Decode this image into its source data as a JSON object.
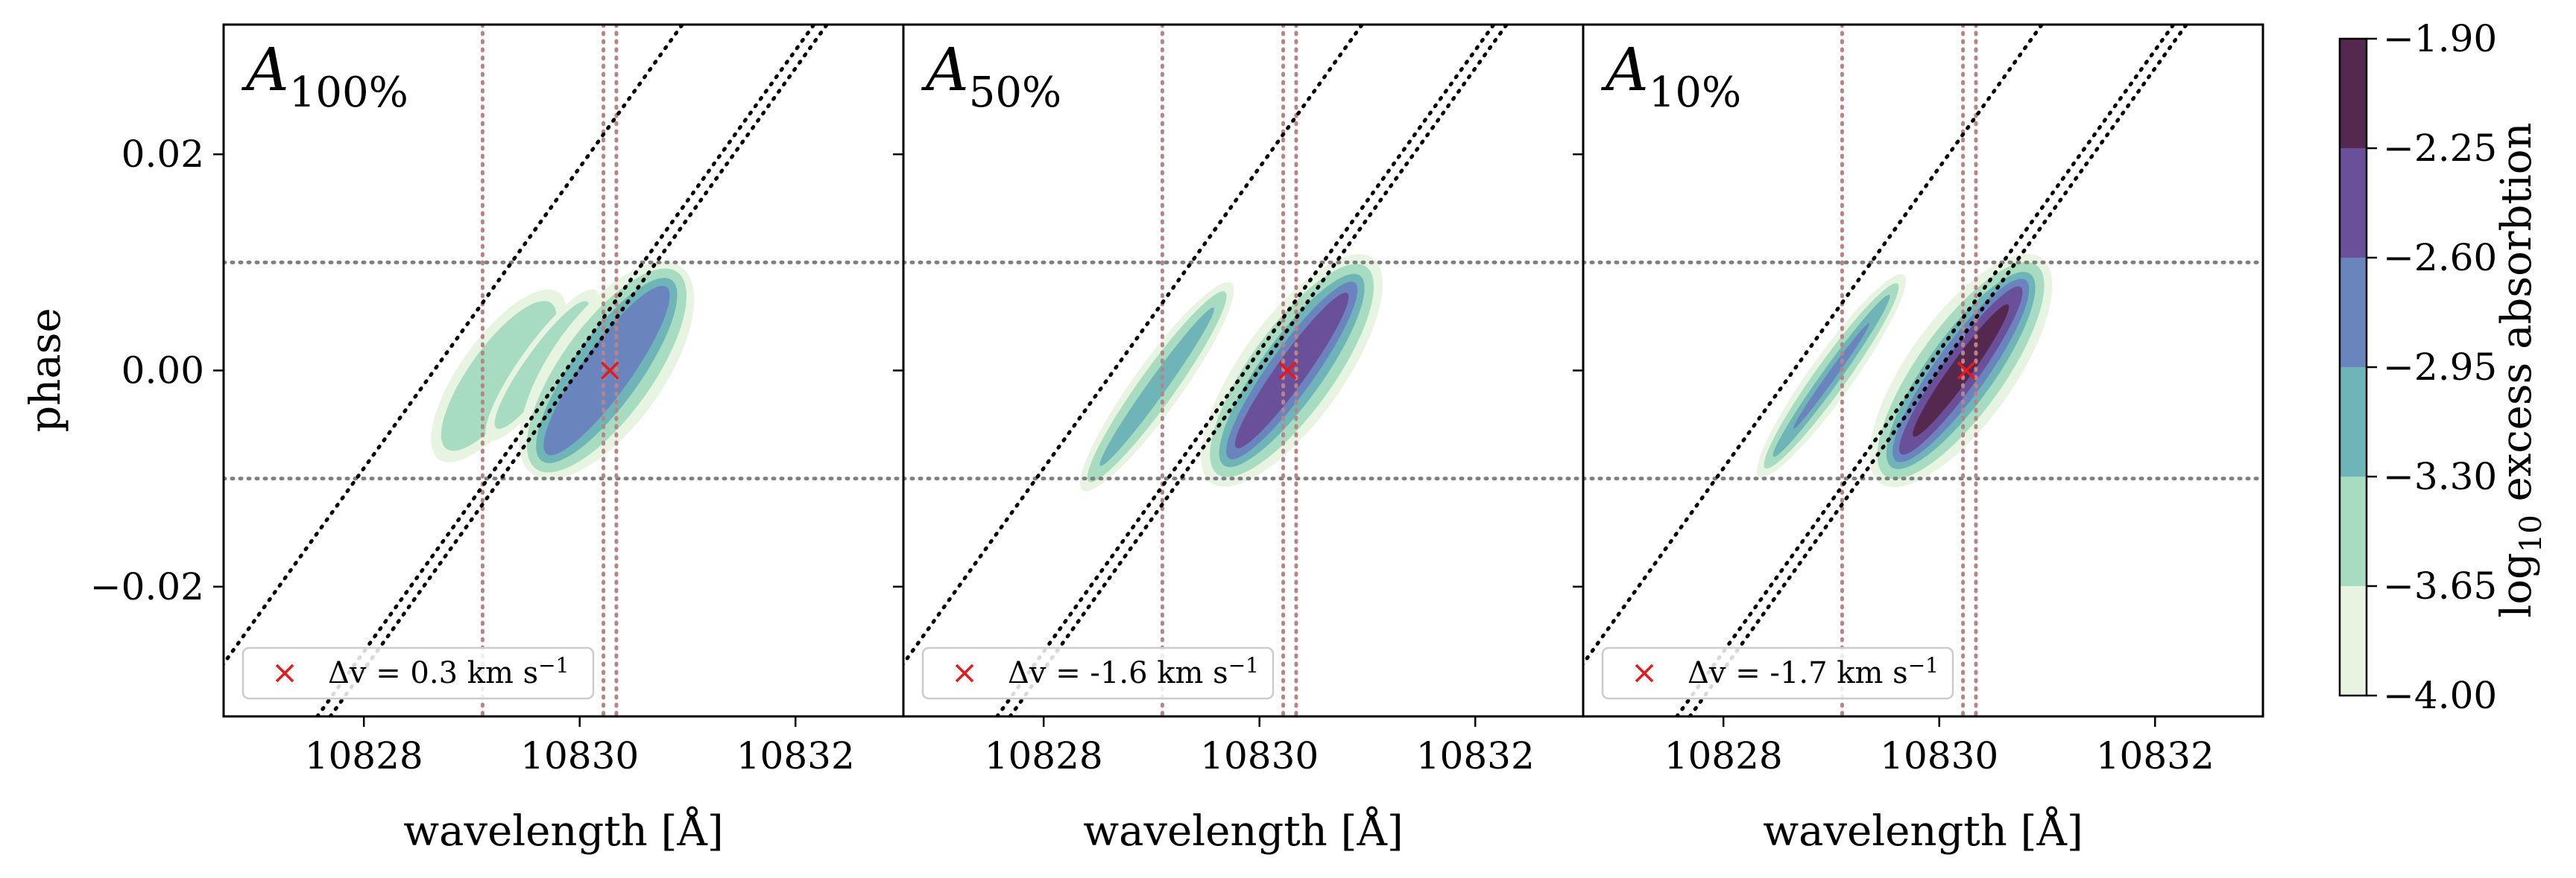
{
  "figure": {
    "ylabel": "phase",
    "xlabel": "wavelength [Å]",
    "colorbar_label_prefix": "log",
    "colorbar_label_sub": "10",
    "colorbar_label_suffix": " excess absorbtion"
  },
  "chart_data": [
    {
      "type": "heatmap",
      "panel_title": "A",
      "panel_title_sub": "100%",
      "legend_marker": "×",
      "legend_label": "Δv = 0.3 km s",
      "legend_sup": "−1",
      "legend_placement": "lower-left",
      "xlim": [
        10826.7,
        10833.0
      ],
      "ylim": [
        -0.032,
        0.032
      ],
      "x_ticks": [
        10828,
        10830,
        10832
      ],
      "y_ticks": [
        -0.02,
        0.0,
        0.02
      ],
      "y_tick_labels": [
        "−0.02",
        "0.00",
        "0.02"
      ],
      "x_tick_labels": [
        "10828",
        "10830",
        "10832"
      ],
      "horizontal_lines": [
        -0.01,
        0.01
      ],
      "vertical_lines": [
        10829.1,
        10830.22,
        10830.34
      ],
      "diagonal_lines": [
        {
          "x_at_y0": 10828.65,
          "slope_x_per_phase": 71.9
        },
        {
          "x_at_y0": 10829.87,
          "slope_x_per_phase": 71.9
        },
        {
          "x_at_y0": 10829.99,
          "slope_x_per_phase": 71.9
        }
      ],
      "marker": {
        "x": 10830.28,
        "y": 0.0
      },
      "blobs": [
        {
          "cx": 10829.25,
          "cy": -0.0005,
          "levels": [
            {
              "level": 1,
              "wx": 0.72,
              "wy": 0.0095
            },
            {
              "level": 2,
              "wx": 0.55,
              "wy": 0.0083
            }
          ]
        },
        {
          "cx": 10829.65,
          "cy": 0.0005,
          "levels": [
            {
              "level": 1,
              "wx": 0.4,
              "wy": 0.0085
            },
            {
              "level": 2,
              "wx": 0.3,
              "wy": 0.0072
            }
          ]
        },
        {
          "cx": 10830.25,
          "cy": 0.0,
          "levels": [
            {
              "level": 1,
              "wx": 1.05,
              "wy": 0.0118
            },
            {
              "level": 2,
              "wx": 0.85,
              "wy": 0.0112
            },
            {
              "level": 3,
              "wx": 0.63,
              "wy": 0.0103
            },
            {
              "level": 4,
              "wx": 0.45,
              "wy": 0.0095
            }
          ]
        }
      ]
    },
    {
      "type": "heatmap",
      "panel_title": "A",
      "panel_title_sub": "50%",
      "legend_marker": "×",
      "legend_label": "Δv = -1.6 km s",
      "legend_sup": "−1",
      "legend_placement": "lower-left",
      "xlim": [
        10826.7,
        10833.0
      ],
      "ylim": [
        -0.032,
        0.032
      ],
      "x_ticks": [
        10828,
        10830,
        10832
      ],
      "y_ticks": [
        -0.02,
        0.0,
        0.02
      ],
      "x_tick_labels": [
        "10828",
        "10830",
        "10832"
      ],
      "horizontal_lines": [
        -0.01,
        0.01
      ],
      "vertical_lines": [
        10829.1,
        10830.22,
        10830.34
      ],
      "diagonal_lines": [
        {
          "x_at_y0": 10828.65,
          "slope_x_per_phase": 71.9
        },
        {
          "x_at_y0": 10829.87,
          "slope_x_per_phase": 71.9
        },
        {
          "x_at_y0": 10829.99,
          "slope_x_per_phase": 71.9
        }
      ],
      "marker": {
        "x": 10830.26,
        "y": 0.0
      },
      "blobs": [
        {
          "cx": 10829.05,
          "cy": -0.0015,
          "levels": [
            {
              "level": 1,
              "wx": 0.45,
              "wy": 0.0118
            },
            {
              "level": 2,
              "wx": 0.33,
              "wy": 0.0108
            },
            {
              "level": 3,
              "wx": 0.17,
              "wy": 0.009
            }
          ]
        },
        {
          "cx": 10830.3,
          "cy": 0.0,
          "levels": [
            {
              "level": 1,
              "wx": 0.95,
              "wy": 0.0128
            },
            {
              "level": 2,
              "wx": 0.78,
              "wy": 0.0118
            },
            {
              "level": 3,
              "wx": 0.58,
              "wy": 0.0108
            },
            {
              "level": 4,
              "wx": 0.42,
              "wy": 0.01
            },
            {
              "level": 5,
              "wx": 0.28,
              "wy": 0.0088
            }
          ]
        }
      ]
    },
    {
      "type": "heatmap",
      "panel_title": "A",
      "panel_title_sub": "10%",
      "legend_marker": "×",
      "legend_label": "Δv = -1.7 km s",
      "legend_sup": "−1",
      "legend_placement": "lower-left",
      "xlim": [
        10826.7,
        10833.0
      ],
      "ylim": [
        -0.032,
        0.032
      ],
      "x_ticks": [
        10828,
        10830,
        10832
      ],
      "y_ticks": [
        -0.02,
        0.0,
        0.02
      ],
      "x_tick_labels": [
        "10828",
        "10830",
        "10832"
      ],
      "horizontal_lines": [
        -0.01,
        0.01
      ],
      "vertical_lines": [
        10829.1,
        10830.22,
        10830.34
      ],
      "diagonal_lines": [
        {
          "x_at_y0": 10828.65,
          "slope_x_per_phase": 71.9
        },
        {
          "x_at_y0": 10829.87,
          "slope_x_per_phase": 71.9
        },
        {
          "x_at_y0": 10829.99,
          "slope_x_per_phase": 71.9
        }
      ],
      "marker": {
        "x": 10830.25,
        "y": 0.0
      },
      "blobs": [
        {
          "cx": 10829.0,
          "cy": -0.0005,
          "levels": [
            {
              "level": 1,
              "wx": 0.4,
              "wy": 0.0115
            },
            {
              "level": 2,
              "wx": 0.29,
              "wy": 0.0105
            },
            {
              "level": 3,
              "wx": 0.17,
              "wy": 0.0092
            },
            {
              "level": 4,
              "wx": 0.08,
              "wy": 0.006
            }
          ]
        },
        {
          "cx": 10830.2,
          "cy": 0.0,
          "levels": [
            {
              "level": 1,
              "wx": 0.98,
              "wy": 0.0128
            },
            {
              "level": 2,
              "wx": 0.8,
              "wy": 0.012
            },
            {
              "level": 3,
              "wx": 0.62,
              "wy": 0.011
            },
            {
              "level": 4,
              "wx": 0.48,
              "wy": 0.0103
            },
            {
              "level": 5,
              "wx": 0.34,
              "wy": 0.0095
            },
            {
              "level": 6,
              "wx": 0.2,
              "wy": 0.0075
            }
          ]
        }
      ]
    }
  ],
  "colorbar": {
    "ticks": [
      -4.0,
      -3.65,
      -3.3,
      -2.95,
      -2.6,
      -2.25,
      -1.9
    ],
    "tick_labels": [
      "−4.00",
      "−3.65",
      "−3.30",
      "−2.95",
      "−2.60",
      "−2.25",
      "−1.90"
    ],
    "colors": [
      "#e8f4e2",
      "#a8dcc0",
      "#6fb5b8",
      "#6a85be",
      "#6a4f9a",
      "#55284f"
    ]
  },
  "colors": {
    "diagonal": "#000000",
    "vertical": "#b98484",
    "horizontal": "#808080",
    "marker": "#e41a1c"
  }
}
